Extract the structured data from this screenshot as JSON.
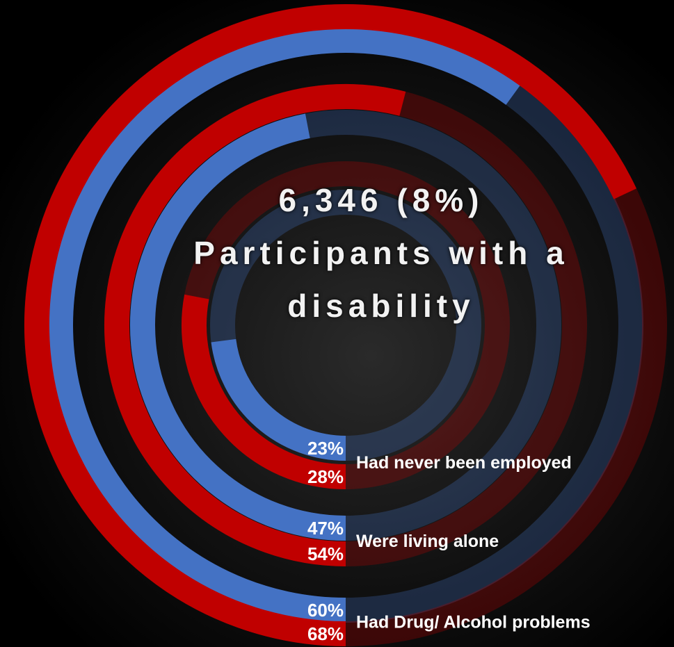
{
  "chart_data": {
    "type": "radial_bar",
    "title": "6,346 (8%)",
    "subtitle": "Participants with a disability",
    "categories": [
      "Had never been employed",
      "Were living alone",
      "Had Drug/ Alcohol problems"
    ],
    "ylim": [
      0,
      100
    ],
    "series": [
      {
        "color": "#4472c4",
        "values": [
          23,
          47,
          60
        ],
        "value_labels": [
          "23%",
          "47%",
          "60%"
        ]
      },
      {
        "color": "#c00000",
        "values": [
          28,
          54,
          68
        ],
        "value_labels": [
          "28%",
          "54%",
          "68%"
        ]
      }
    ]
  }
}
